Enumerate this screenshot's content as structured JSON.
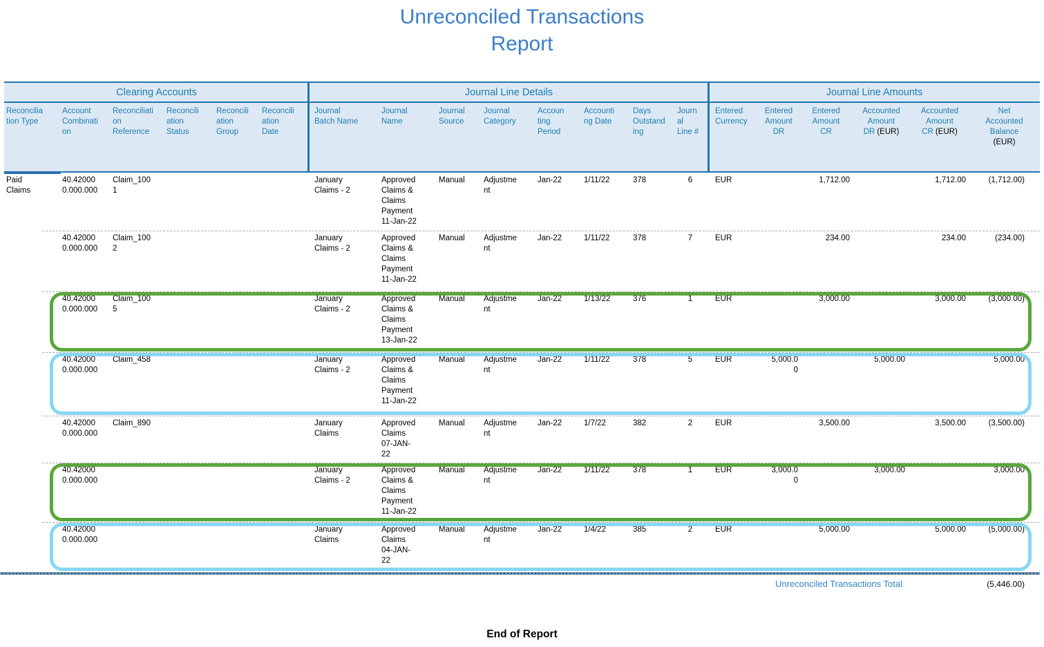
{
  "title": {
    "line1": "Unreconciled Transactions",
    "line2": "Report"
  },
  "colors": {
    "title_blue": "#3B7EC6",
    "header_text_blue": "#1E7CB0",
    "header_background": "#DCE9F4",
    "divider_blue": "#2573AC",
    "green_highlight": "#5AA73C",
    "cyan_highlight": "#87D7F3",
    "table_end_navy": "#1D4F76"
  },
  "table": {
    "groups": [
      {
        "label": "Clearing Accounts"
      },
      {
        "label": "Journal Line Details"
      },
      {
        "label": "Journal Line Amounts"
      }
    ],
    "columns": [
      {
        "text": "Reconcilia\ntion Type"
      },
      {
        "text": "Account\nCombinati\non"
      },
      {
        "text": "Reconciliati\non\nReference"
      },
      {
        "text": "Reconcili\nation\nStatus"
      },
      {
        "text": "Reconcili\nation\nGroup"
      },
      {
        "text": "Reconcili\nation\nDate"
      },
      {
        "text": "Journal\nBatch Name"
      },
      {
        "text": "Journal\nName"
      },
      {
        "text": "Journal\nSource"
      },
      {
        "text": "Journal\nCategory"
      },
      {
        "text": "Accoun\nting\nPeriod"
      },
      {
        "text": "Accounti\nng Date"
      },
      {
        "text": "Days\nOutstand\ning"
      },
      {
        "text": "Journ\nal\nLine #"
      },
      {
        "text": "Entered\nCurrency"
      },
      {
        "text": "Entered\nAmount\nDR"
      },
      {
        "text": "Entered\nAmount\nCR"
      },
      {
        "text": "Accounted\nAmount\nDR",
        "suffix": "(EUR)"
      },
      {
        "text": "Accounted\nAmount\nCR",
        "suffix": "(EUR)"
      },
      {
        "text": "Net\nAccounted\nBalance",
        "suffix": "(EUR)"
      }
    ],
    "rows": [
      {
        "reconciliation_type": "Paid\nClaims",
        "account": "40.42000\n0.000.000",
        "reference": "Claim_100\n1",
        "journal_batch_name": "January\nClaims - 2",
        "journal_name": "Approved\nClaims &\nClaims\nPayment\n11-Jan-22",
        "journal_source": "Manual",
        "journal_category": "Adjustme\nnt",
        "accounting_period": "Jan-22",
        "accounting_date": "1/11/22",
        "days_outstanding": "378",
        "journal_line": "6",
        "entered_currency": "EUR",
        "entered_amount_cr": "1,712.00",
        "accounted_amount_cr": "1,712.00",
        "net_accounted_balance": "(1,712.00)",
        "highlight": "none"
      },
      {
        "account": "40.42000\n0.000.000",
        "reference": "Claim_100\n2",
        "journal_batch_name": "January\nClaims - 2",
        "journal_name": "Approved\nClaims &\nClaims\nPayment\n11-Jan-22",
        "journal_source": "Manual",
        "journal_category": "Adjustme\nnt",
        "accounting_period": "Jan-22",
        "accounting_date": "1/11/22",
        "days_outstanding": "378",
        "journal_line": "7",
        "entered_currency": "EUR",
        "entered_amount_cr": "234.00",
        "accounted_amount_cr": "234.00",
        "net_accounted_balance": "(234.00)",
        "highlight": "none"
      },
      {
        "account": "40.42000\n0.000.000",
        "reference": "Claim_100\n5",
        "journal_batch_name": "January\nClaims - 2",
        "journal_name": "Approved\nClaims &\nClaims\nPayment\n13-Jan-22",
        "journal_source": "Manual",
        "journal_category": "Adjustme\nnt",
        "accounting_period": "Jan-22",
        "accounting_date": "1/13/22",
        "days_outstanding": "376",
        "journal_line": "1",
        "entered_currency": "EUR",
        "entered_amount_cr": "3,000.00",
        "accounted_amount_cr": "3,000.00",
        "net_accounted_balance": "(3,000.00)",
        "highlight": "green"
      },
      {
        "account": "40.42000\n0.000.000",
        "reference": "Claim_458",
        "journal_batch_name": "January\nClaims - 2",
        "journal_name": "Approved\nClaims &\nClaims\nPayment\n11-Jan-22",
        "journal_source": "Manual",
        "journal_category": "Adjustme\nnt",
        "accounting_period": "Jan-22",
        "accounting_date": "1/11/22",
        "days_outstanding": "378",
        "journal_line": "5",
        "entered_currency": "EUR",
        "entered_amount_dr": "5,000.0\n0",
        "accounted_amount_dr": "5,000.00",
        "net_accounted_balance": "5,000.00",
        "highlight": "cyan"
      },
      {
        "account": "40.42000\n0.000.000",
        "reference": "Claim_890",
        "journal_batch_name": "January\nClaims",
        "journal_name": "Approved\nClaims\n07-JAN-\n22",
        "journal_source": "Manual",
        "journal_category": "Adjustme\nnt",
        "accounting_period": "Jan-22",
        "accounting_date": "1/7/22",
        "days_outstanding": "382",
        "journal_line": "2",
        "entered_currency": "EUR",
        "entered_amount_cr": "3,500.00",
        "accounted_amount_cr": "3,500.00",
        "net_accounted_balance": "(3,500.00)",
        "highlight": "none"
      },
      {
        "account": "40.42000\n0.000.000",
        "journal_batch_name": "January\nClaims - 2",
        "journal_name": "Approved\nClaims &\nClaims\nPayment\n11-Jan-22",
        "journal_source": "Manual",
        "journal_category": "Adjustme\nnt",
        "accounting_period": "Jan-22",
        "accounting_date": "1/11/22",
        "days_outstanding": "378",
        "journal_line": "1",
        "entered_currency": "EUR",
        "entered_amount_dr": "3,000.0\n0",
        "accounted_amount_dr": "3,000.00",
        "net_accounted_balance": "3,000.00",
        "highlight": "green"
      },
      {
        "account": "40.42000\n0.000.000",
        "journal_batch_name": "January\nClaims",
        "journal_name": "Approved\nClaims\n04-JAN-\n22",
        "journal_source": "Manual",
        "journal_category": "Adjustme\nnt",
        "accounting_period": "Jan-22",
        "accounting_date": "1/4/22",
        "days_outstanding": "385",
        "journal_line": "2",
        "entered_currency": "EUR",
        "entered_amount_cr": "5,000.00",
        "accounted_amount_cr": "5,000.00",
        "net_accounted_balance": "(5,000.00)",
        "highlight": "cyan"
      }
    ],
    "total": {
      "label": "Unreconciled Transactions Total",
      "value": "(5,446.00)"
    }
  },
  "footer": {
    "end_label": "End of Report"
  }
}
